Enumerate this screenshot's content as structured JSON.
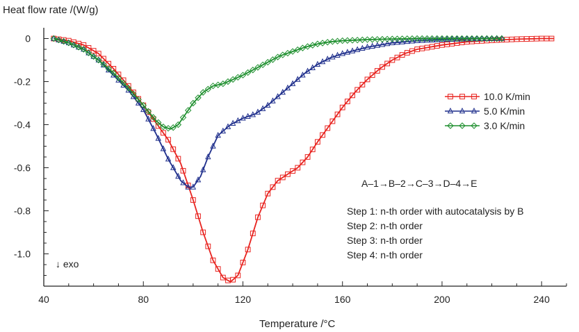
{
  "chart_data": {
    "type": "line",
    "ylabel": "Heat flow rate /(W/g)",
    "xlabel": "Temperature /°C",
    "xlim": [
      40,
      250
    ],
    "ylim": [
      -1.15,
      0.05
    ],
    "xticks": [
      "40",
      "80",
      "120",
      "160",
      "200",
      "240"
    ],
    "xtick_values": [
      40,
      80,
      120,
      160,
      200,
      240
    ],
    "yticks": [
      "0",
      "-0.2",
      "-0.4",
      "-0.6",
      "-0.8",
      "-1.0"
    ],
    "ytick_values": [
      0,
      -0.2,
      -0.4,
      -0.6,
      -0.8,
      -1.0
    ],
    "grid": false,
    "legend_position": "right",
    "series": [
      {
        "name": "10.0 K/min",
        "color": "#e8231f",
        "marker": "square",
        "x": [
          44,
          50,
          56,
          62,
          68,
          74,
          80,
          85,
          90,
          95,
          100,
          104,
          108,
          112,
          115,
          118,
          122,
          126,
          130,
          134,
          138,
          142,
          146,
          150,
          155,
          160,
          165,
          170,
          175,
          180,
          185,
          190,
          200,
          210,
          220,
          230,
          240,
          245
        ],
        "y": [
          0,
          -0.01,
          -0.03,
          -0.07,
          -0.14,
          -0.22,
          -0.31,
          -0.39,
          -0.47,
          -0.58,
          -0.75,
          -0.9,
          -1.03,
          -1.11,
          -1.13,
          -1.1,
          -0.98,
          -0.83,
          -0.72,
          -0.66,
          -0.63,
          -0.6,
          -0.55,
          -0.48,
          -0.4,
          -0.32,
          -0.25,
          -0.19,
          -0.14,
          -0.1,
          -0.07,
          -0.05,
          -0.03,
          -0.015,
          -0.008,
          -0.003,
          0,
          0
        ]
      },
      {
        "name": "5.0 K/min",
        "color": "#1f2f8c",
        "marker": "triangle",
        "x": [
          44,
          50,
          56,
          62,
          68,
          74,
          80,
          85,
          90,
          95,
          98,
          100,
          103,
          106,
          110,
          115,
          120,
          125,
          130,
          135,
          140,
          145,
          150,
          155,
          160,
          170,
          180,
          190,
          200,
          210,
          220,
          224
        ],
        "y": [
          0,
          -0.02,
          -0.05,
          -0.1,
          -0.17,
          -0.24,
          -0.33,
          -0.44,
          -0.56,
          -0.66,
          -0.69,
          -0.69,
          -0.64,
          -0.55,
          -0.45,
          -0.4,
          -0.37,
          -0.35,
          -0.31,
          -0.26,
          -0.21,
          -0.16,
          -0.12,
          -0.09,
          -0.07,
          -0.04,
          -0.02,
          -0.01,
          -0.005,
          -0.002,
          0,
          0
        ]
      },
      {
        "name": "3.0 K/min",
        "color": "#1e8f2e",
        "marker": "diamond",
        "x": [
          44,
          50,
          56,
          62,
          68,
          74,
          80,
          85,
          88,
          91,
          94,
          97,
          100,
          104,
          108,
          112,
          116,
          120,
          125,
          130,
          135,
          140,
          145,
          150,
          155,
          160,
          170,
          180,
          190,
          200,
          210,
          220,
          224
        ],
        "y": [
          0,
          -0.02,
          -0.05,
          -0.1,
          -0.16,
          -0.23,
          -0.31,
          -0.38,
          -0.41,
          -0.42,
          -0.4,
          -0.35,
          -0.3,
          -0.25,
          -0.22,
          -0.21,
          -0.19,
          -0.17,
          -0.14,
          -0.11,
          -0.08,
          -0.06,
          -0.04,
          -0.025,
          -0.015,
          -0.01,
          -0.005,
          -0.002,
          0,
          0,
          0,
          0,
          0
        ]
      }
    ],
    "annotations": {
      "exo": "↓ exo",
      "mechanism": "A–1→B–2→C–3→D–4→E",
      "steps": [
        "Step 1: n-th order with autocatalysis by B",
        "Step 2: n-th order",
        "Step 3: n-th order",
        "Step 4: n-th order"
      ]
    }
  }
}
